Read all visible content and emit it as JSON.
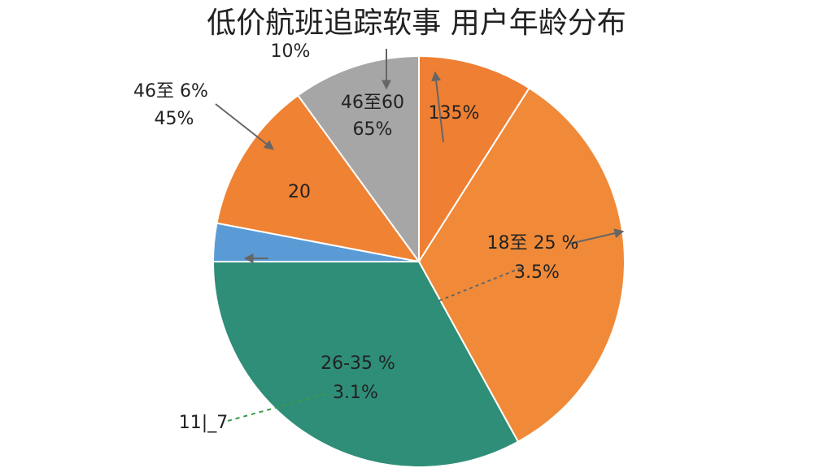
{
  "chart_data": {
    "type": "pie",
    "title": "低价航班追踪软事 用户年龄分布",
    "categories": [
      null,
      "18至 25 %",
      "26-35 %",
      null,
      "46至 6%",
      "46至60"
    ],
    "values": [
      9,
      33,
      33,
      3,
      12,
      10
    ],
    "colors": [
      "#ee7f33",
      "#f08a38",
      "#2f8e78",
      "#5b9bd5",
      "#ef8233",
      "#a6a6a6"
    ],
    "annotations": [
      "135%",
      "3.5%",
      "3.1%",
      "45%",
      "20",
      "65%",
      "10%",
      "11|_7"
    ]
  }
}
